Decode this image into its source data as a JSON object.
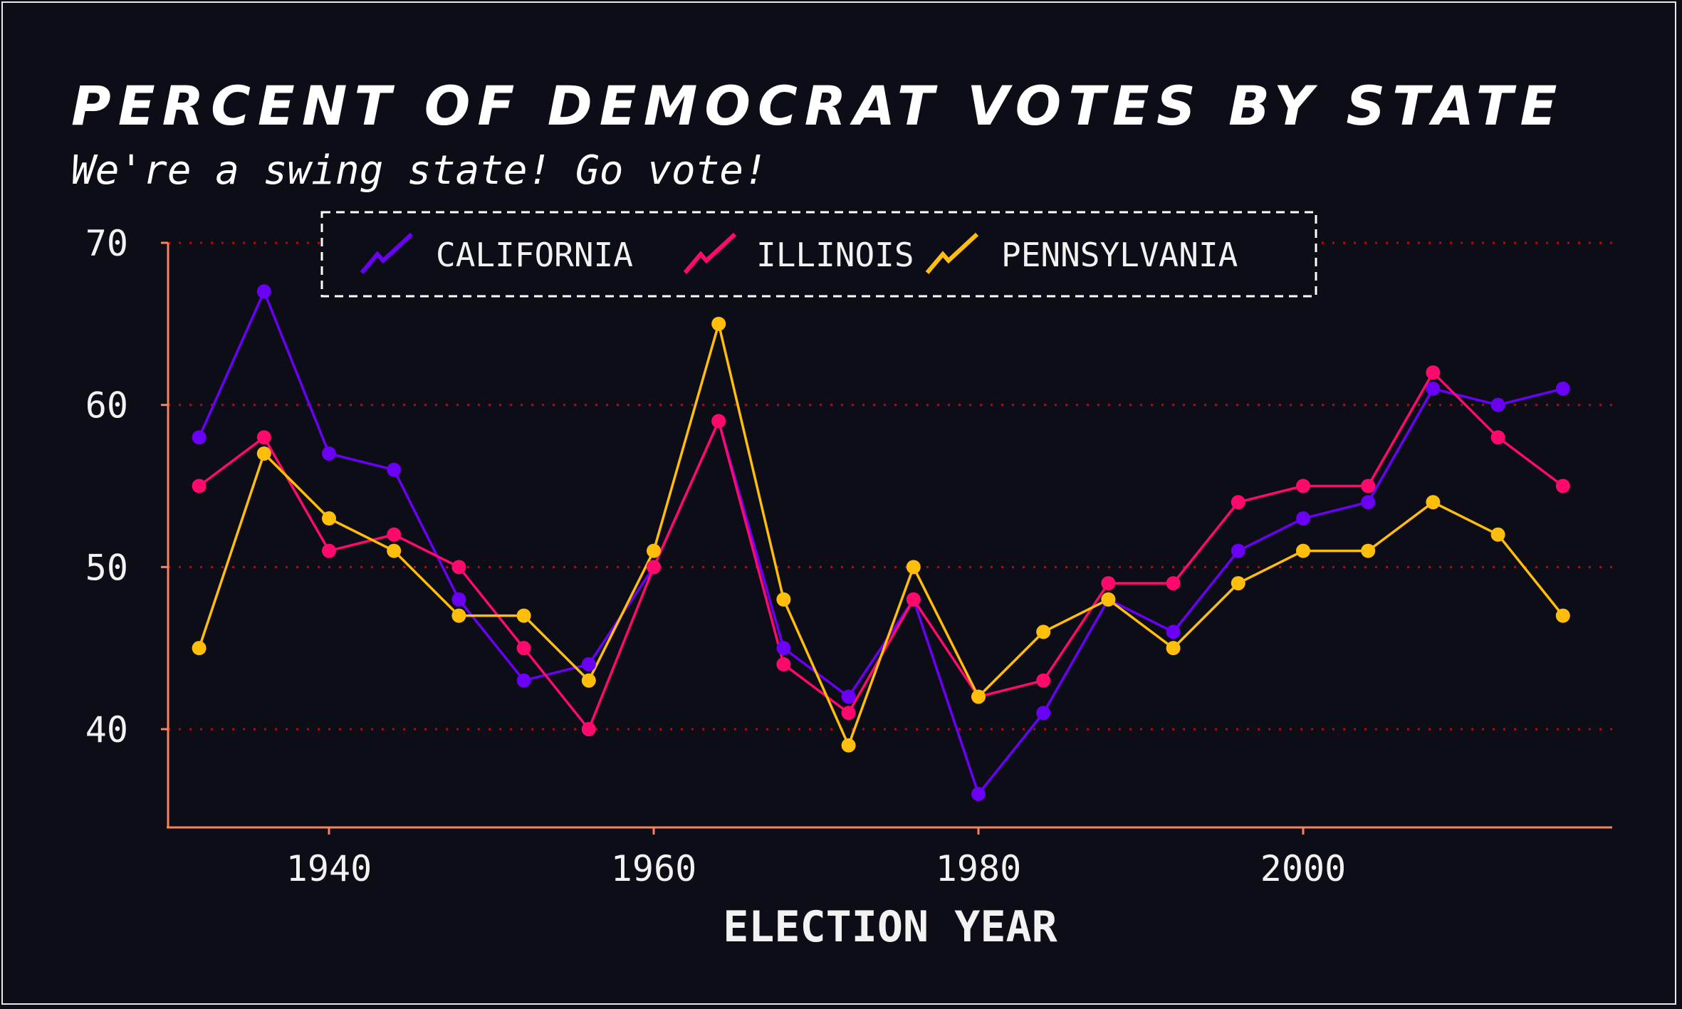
{
  "chart_data": {
    "type": "line",
    "title": "PERCENT OF DEMOCRAT VOTES BY STATE",
    "subtitle": "We're a swing state! Go vote!",
    "xlabel": "ELECTION YEAR",
    "ylabel": "",
    "xlim": [
      1930,
      2020
    ],
    "ylim": [
      34,
      70
    ],
    "x_ticks": [
      1940,
      1960,
      1980,
      2000
    ],
    "y_ticks": [
      40,
      50,
      60,
      70
    ],
    "grid": "horizontal dotted",
    "legend_position": "top",
    "x": [
      1932,
      1936,
      1940,
      1944,
      1948,
      1952,
      1956,
      1960,
      1964,
      1968,
      1972,
      1976,
      1980,
      1984,
      1988,
      1992,
      1996,
      2000,
      2004,
      2008,
      2012,
      2016
    ],
    "series": [
      {
        "name": "CALIFORNIA",
        "color": "#6a00f4",
        "values": [
          58,
          67,
          57,
          56,
          48,
          43,
          44,
          50,
          59,
          45,
          42,
          48,
          36,
          41,
          48,
          46,
          51,
          53,
          54,
          61,
          60,
          61
        ]
      },
      {
        "name": "ILLINOIS",
        "color": "#ff0a6c",
        "values": [
          55,
          58,
          51,
          52,
          50,
          45,
          40,
          50,
          59,
          44,
          41,
          48,
          42,
          43,
          49,
          49,
          54,
          55,
          55,
          62,
          58,
          55
        ]
      },
      {
        "name": "PENNSYLVANIA",
        "color": "#ffbe0b",
        "values": [
          45,
          57,
          53,
          51,
          47,
          47,
          43,
          51,
          65,
          48,
          39,
          50,
          42,
          46,
          48,
          45,
          49,
          51,
          51,
          54,
          52,
          47
        ]
      }
    ]
  },
  "colors": {
    "background": "#0d0d17",
    "axis": "#f4845f",
    "grid": "#d00000",
    "text": "#f2f2f2"
  }
}
